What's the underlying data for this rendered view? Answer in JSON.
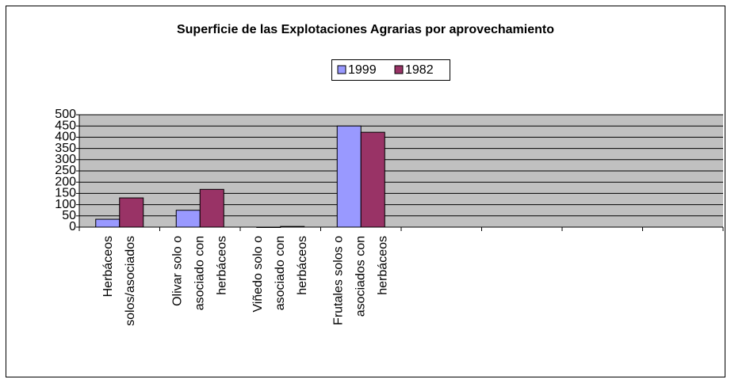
{
  "chart_data": {
    "type": "bar",
    "title": "Superficie de las Explotaciones Agrarias por aprovechamiento",
    "categories": [
      [
        "Herbáceos",
        "solos/asociados"
      ],
      [
        "Olivar solo o",
        "asociado con",
        "herbáceos"
      ],
      [
        "Viñedo solo o",
        "asociado con",
        "herbáceos"
      ],
      [
        "Frutales solos o",
        "asociados con",
        "herbáceos"
      ],
      null,
      null,
      null,
      null
    ],
    "series": [
      {
        "name": "1999",
        "color": "#9999ff",
        "values": [
          35,
          75,
          0,
          450,
          null,
          null,
          null,
          null
        ]
      },
      {
        "name": "1982",
        "color": "#993366",
        "values": [
          130,
          168,
          3,
          422,
          null,
          null,
          null,
          null
        ]
      }
    ],
    "ylim": [
      0,
      500
    ],
    "yticks": [
      0,
      50,
      100,
      150,
      200,
      250,
      300,
      350,
      400,
      450,
      500
    ],
    "grid": true,
    "legend": "top"
  }
}
